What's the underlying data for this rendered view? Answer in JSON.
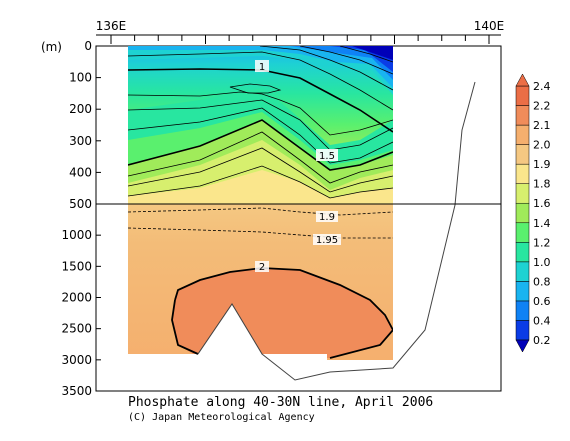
{
  "chart_data": {
    "type": "heatmap",
    "title": "Phosphate along 40-30N line, April 2006",
    "credit": "(C) Japan Meteorological Agency",
    "top_axis": {
      "labels": [
        "136E",
        "140E"
      ],
      "lon": [
        136,
        140
      ]
    },
    "y_unit_label": "(m)",
    "y_upper": {
      "ticks": [
        0,
        100,
        200,
        300,
        400,
        500
      ],
      "range": [
        0,
        500
      ]
    },
    "y_lower": {
      "ticks": [
        500,
        1000,
        1500,
        2000,
        2500,
        3000,
        3500
      ],
      "range": [
        500,
        3500
      ]
    },
    "colorbar": {
      "levels": [
        0.2,
        0.4,
        0.6,
        0.8,
        1.0,
        1.2,
        1.4,
        1.6,
        1.8,
        1.9,
        2.0,
        2.1,
        2.2,
        2.4
      ],
      "level_labels": [
        "0.2",
        "0.4",
        "0.6",
        "0.8",
        "1.0",
        "1.2",
        "1.4",
        "1.6",
        "1.8",
        "1.9",
        "2.0",
        "2.1",
        "2.2",
        "2.4"
      ],
      "colors": [
        "#0000b8",
        "#0a3ce6",
        "#0f82f5",
        "#19b4f0",
        "#1ed2d2",
        "#28e6a0",
        "#5af06e",
        "#a0eb5a",
        "#d7ef6e",
        "#fae68c",
        "#f5c882",
        "#f5af6e",
        "#f08c5a",
        "#eb6e46"
      ]
    },
    "contour_labels": [
      {
        "text": "1",
        "lon": 137.0,
        "depth": 65
      },
      {
        "text": "1.5",
        "lon": 137.9,
        "depth": 350
      },
      {
        "text": "1.9",
        "lon": 137.9,
        "depth": 700
      },
      {
        "text": "1.95",
        "lon": 137.95,
        "depth": 1000
      },
      {
        "text": "2",
        "lon": 137.0,
        "depth": 1450
      }
    ]
  }
}
